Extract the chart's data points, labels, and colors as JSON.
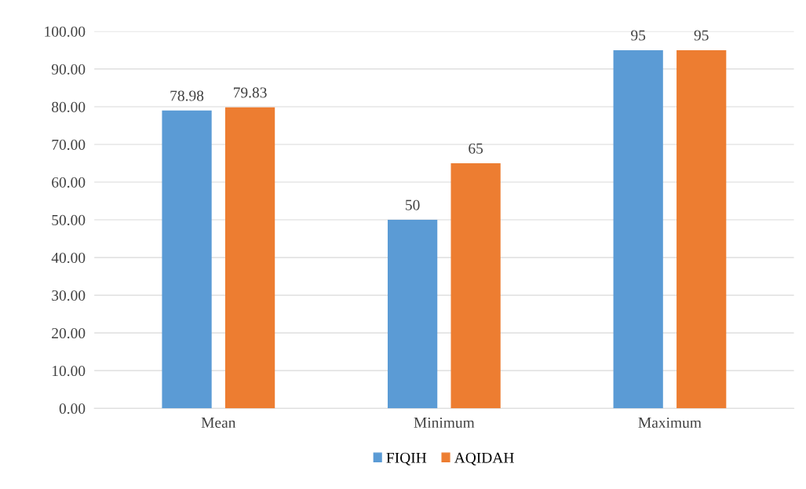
{
  "chart_data": {
    "type": "bar",
    "categories": [
      "Mean",
      "Minimum",
      "Maximum"
    ],
    "series": [
      {
        "name": "FIQIH",
        "color": "#5b9bd5",
        "values": [
          78.98,
          50,
          95
        ]
      },
      {
        "name": "AQIDAH",
        "color": "#ed7d31",
        "values": [
          79.83,
          65,
          95
        ]
      }
    ],
    "ylim": [
      0,
      100
    ],
    "yticks": [
      {
        "value": 0,
        "label": "0.00"
      },
      {
        "value": 10,
        "label": "10.00"
      },
      {
        "value": 20,
        "label": "20.00"
      },
      {
        "value": 30,
        "label": "30.00"
      },
      {
        "value": 40,
        "label": "40.00"
      },
      {
        "value": 50,
        "label": "50.00"
      },
      {
        "value": 60,
        "label": "60.00"
      },
      {
        "value": 70,
        "label": "70.00"
      },
      {
        "value": 80,
        "label": "80.00"
      },
      {
        "value": 90,
        "label": "90.00"
      },
      {
        "value": 100,
        "label": "100.00"
      }
    ],
    "grid": "y",
    "legend": "bottom",
    "data_labels": true
  }
}
